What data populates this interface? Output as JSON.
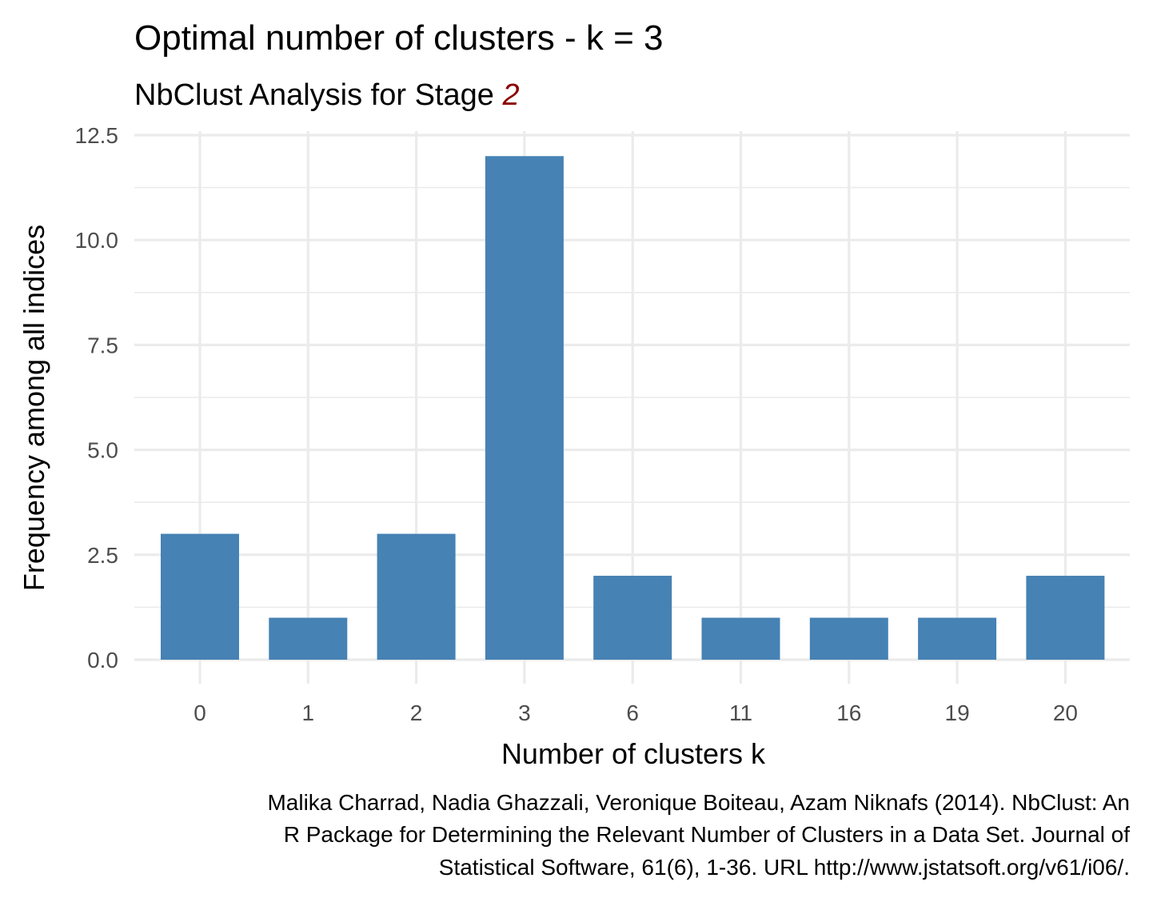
{
  "chart_data": {
    "type": "bar",
    "title": "Optimal number of clusters - k = 3",
    "subtitle": {
      "prefix": "NbClust Analysis for Stage ",
      "highlight": "2"
    },
    "xlabel": "Number of clusters k",
    "ylabel": "Frequency among all indices",
    "categories": [
      "0",
      "1",
      "2",
      "3",
      "6",
      "11",
      "16",
      "19",
      "20"
    ],
    "values": [
      3,
      1,
      3,
      12,
      2,
      1,
      1,
      1,
      2
    ],
    "ylim": [
      0,
      12.5
    ],
    "yticks": [
      "0.0",
      "2.5",
      "5.0",
      "7.5",
      "10.0",
      "12.5"
    ],
    "grid": true,
    "legend": "none",
    "caption": [
      "Malika Charrad, Nadia Ghazzali, Veronique Boiteau, Azam Niknafs (2014). NbClust: An",
      "R Package for Determining the Relevant Number of Clusters in a Data Set. Journal of",
      "Statistical Software, 61(6), 1-36. URL http://www.jstatsoft.org/v61/i06/."
    ]
  },
  "colors": {
    "bar": "#4682b4",
    "grid": "#ebebeb",
    "accent": "#8b0000",
    "tick": "#4d4d4d"
  }
}
